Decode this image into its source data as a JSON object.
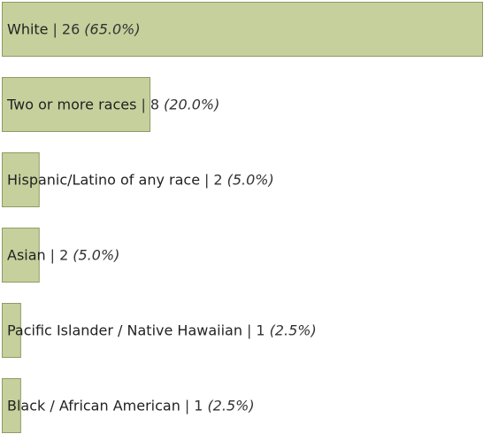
{
  "chart_data": {
    "type": "bar",
    "orientation": "horizontal",
    "categories": [
      "White",
      "Two or more races",
      "Hispanic/Latino of any race",
      "Asian",
      "Pacific Islander / Native Hawaiian",
      "Black / African American"
    ],
    "values": [
      26,
      8,
      2,
      2,
      1,
      1
    ],
    "separator": "|",
    "percentages": [
      65.0,
      20.0,
      5.0,
      5.0,
      2.5,
      2.5
    ],
    "percent_labels": [
      "(65.0%)",
      "(20.0%)",
      "(5.0%)",
      "(5.0%)",
      "(2.5%)",
      "(2.5%)"
    ],
    "color": "#c6d09c",
    "edge_color": "#8e9c64"
  }
}
